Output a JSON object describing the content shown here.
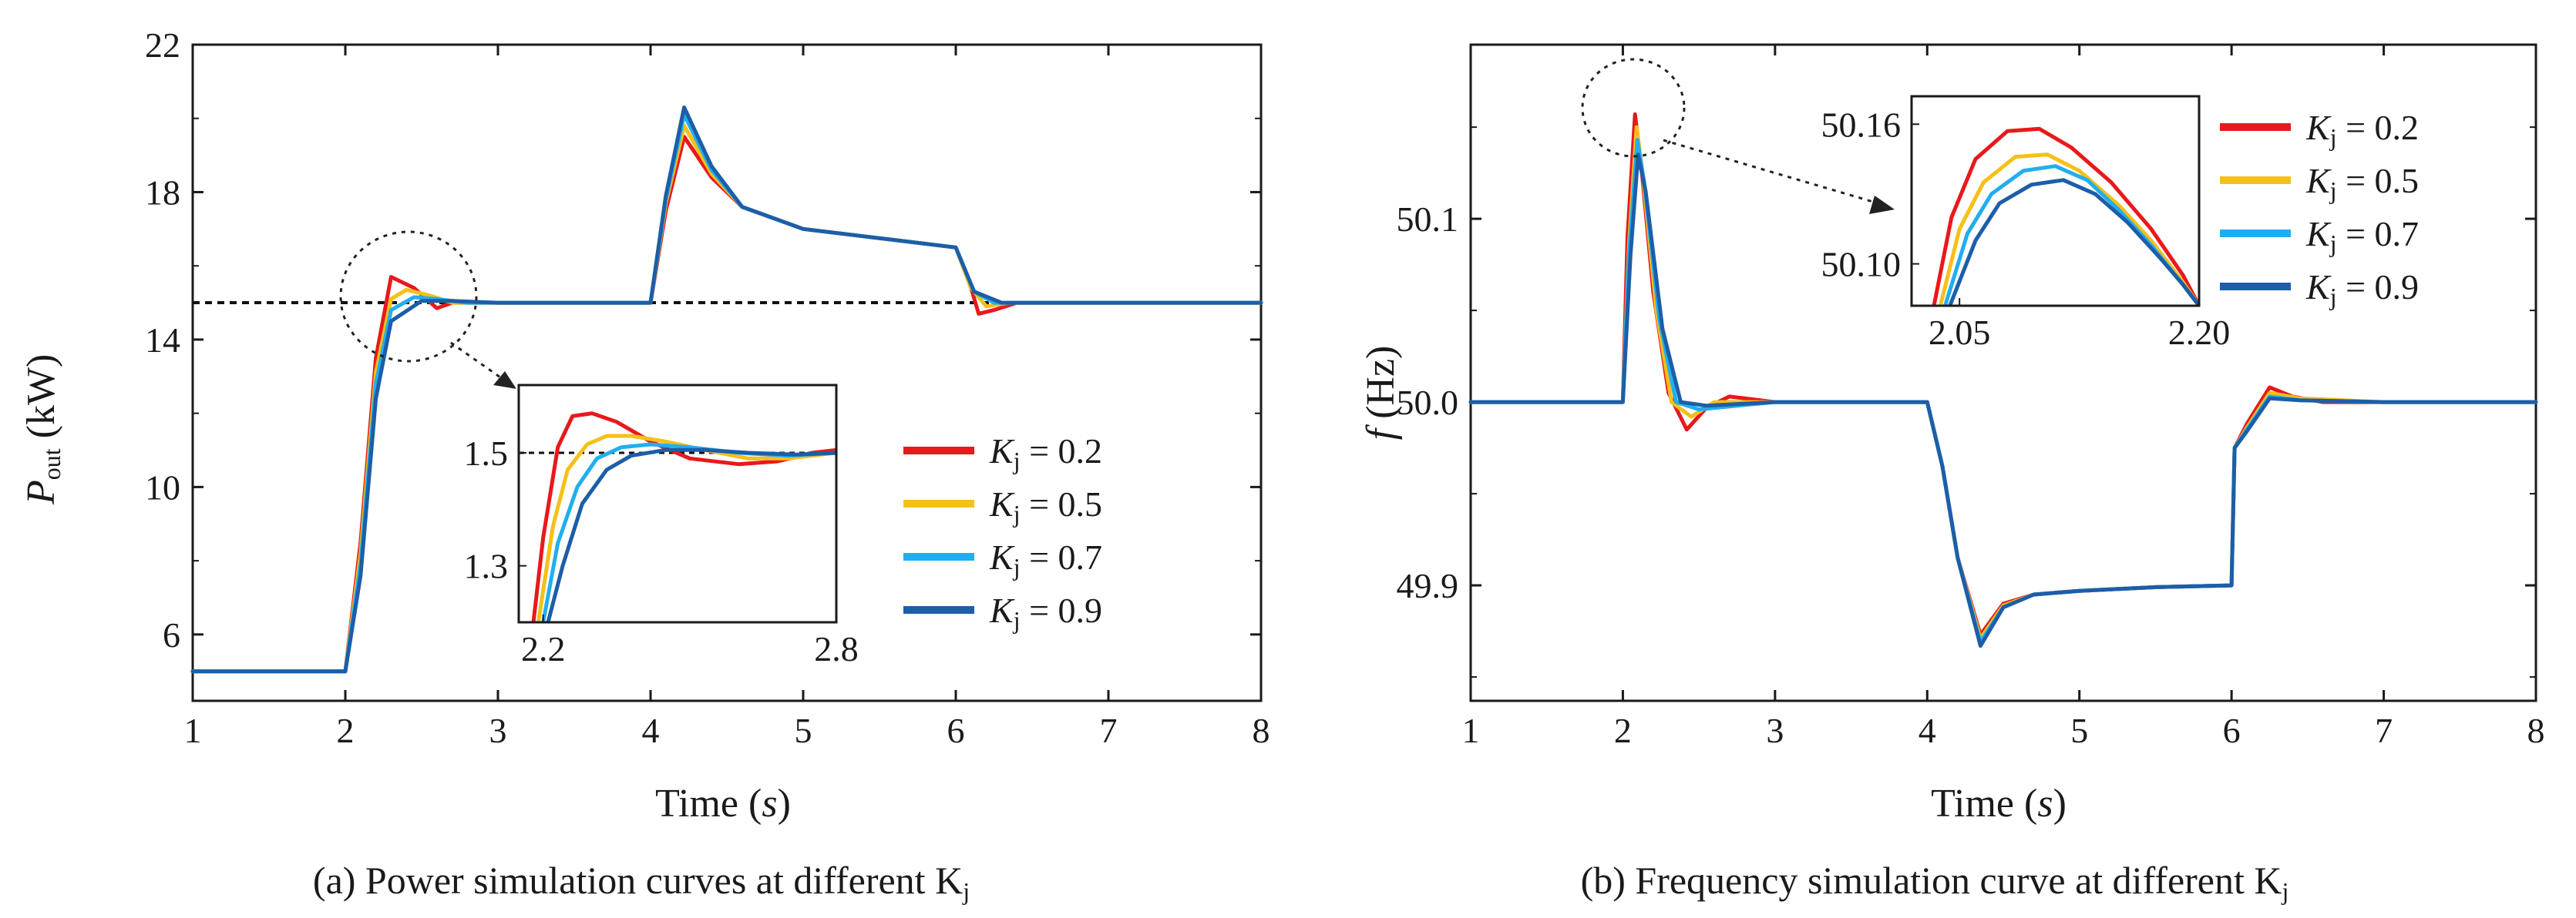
{
  "chart_data": [
    {
      "type": "line",
      "caption": "(a) Power simulation curves at different K",
      "caption_sub": "j",
      "xlabel": "Time (s)",
      "xlabel_var": "s",
      "ylabel": "P",
      "ylabel_sub": "out",
      "ylabel_unit": " (kW)",
      "xlim": [
        1,
        8
      ],
      "ylim": [
        4.2,
        22
      ],
      "xticks": [
        1,
        2,
        3,
        4,
        5,
        6,
        7,
        8
      ],
      "yticks": [
        6,
        10,
        14,
        18,
        22
      ],
      "reference_line": 15,
      "colors": [
        "#e8191b",
        "#f5c018",
        "#22aeee",
        "#1c5ea8"
      ],
      "series": [
        {
          "name": "Kj = 0.2",
          "x": [
            1,
            2,
            2.1,
            2.2,
            2.3,
            2.45,
            2.6,
            2.7,
            2.8,
            3,
            4,
            4.1,
            4.22,
            4.4,
            4.6,
            5,
            5.5,
            6,
            6.1,
            6.15,
            6.25,
            6.4,
            7,
            8
          ],
          "values": [
            5,
            5,
            8.5,
            13.5,
            15.7,
            15.4,
            14.85,
            15.0,
            15.0,
            15,
            15,
            17.5,
            19.5,
            18.4,
            17.6,
            17.0,
            16.75,
            16.5,
            15.4,
            14.7,
            14.8,
            15.0,
            15,
            15
          ]
        },
        {
          "name": "Kj = 0.5",
          "x": [
            1,
            2,
            2.1,
            2.2,
            2.3,
            2.4,
            2.55,
            2.7,
            3,
            4,
            4.1,
            4.22,
            4.4,
            4.6,
            5,
            5.5,
            6,
            6.1,
            6.2,
            6.35,
            7,
            8
          ],
          "values": [
            5,
            5,
            8.2,
            13.1,
            15.1,
            15.35,
            15.2,
            15.0,
            15,
            15,
            17.7,
            19.8,
            18.5,
            17.6,
            17.0,
            16.75,
            16.5,
            15.4,
            14.9,
            15.0,
            15,
            15
          ]
        },
        {
          "name": "Kj = 0.7",
          "x": [
            1,
            2,
            2.1,
            2.2,
            2.3,
            2.45,
            2.6,
            2.8,
            3,
            4,
            4.1,
            4.22,
            4.4,
            4.6,
            5,
            5.5,
            6,
            6.12,
            6.25,
            7,
            8
          ],
          "values": [
            5,
            5,
            7.9,
            12.8,
            14.8,
            15.15,
            15.1,
            15.0,
            15,
            15,
            17.8,
            20.1,
            18.6,
            17.6,
            17.0,
            16.75,
            16.5,
            15.3,
            15.0,
            15,
            15
          ]
        },
        {
          "name": "Kj = 0.9",
          "x": [
            1,
            2,
            2.1,
            2.2,
            2.3,
            2.5,
            2.7,
            3,
            4,
            4.1,
            4.22,
            4.4,
            4.6,
            5,
            5.5,
            6,
            6.12,
            6.3,
            7,
            8
          ],
          "values": [
            5,
            5,
            7.6,
            12.4,
            14.5,
            15.05,
            15.05,
            15,
            15,
            17.9,
            20.3,
            18.7,
            17.6,
            17.0,
            16.75,
            16.5,
            15.3,
            15.0,
            15,
            15
          ]
        }
      ],
      "inset": {
        "xlim": [
          2.15,
          2.8
        ],
        "ylim": [
          1.2,
          1.62
        ],
        "xticks": [
          {
            "v": 2.2,
            "label": "2.2"
          },
          {
            "v": 2.8,
            "label": "2.8"
          }
        ],
        "yticks": [
          {
            "v": 1.3,
            "label": "1.3"
          },
          {
            "v": 1.5,
            "label": "1.5"
          }
        ],
        "reference_line": 1.5,
        "series": [
          {
            "x": [
              2.18,
              2.2,
              2.23,
              2.26,
              2.3,
              2.35,
              2.42,
              2.5,
              2.6,
              2.68,
              2.75,
              2.8
            ],
            "values": [
              1.2,
              1.35,
              1.51,
              1.565,
              1.57,
              1.555,
              1.52,
              1.49,
              1.48,
              1.485,
              1.5,
              1.505
            ]
          },
          {
            "x": [
              2.19,
              2.22,
              2.25,
              2.29,
              2.33,
              2.38,
              2.45,
              2.53,
              2.62,
              2.7,
              2.8
            ],
            "values": [
              1.2,
              1.37,
              1.47,
              1.515,
              1.53,
              1.53,
              1.52,
              1.505,
              1.49,
              1.49,
              1.5
            ]
          },
          {
            "x": [
              2.2,
              2.23,
              2.27,
              2.31,
              2.36,
              2.42,
              2.5,
              2.6,
              2.7,
              2.8
            ],
            "values": [
              1.2,
              1.34,
              1.44,
              1.49,
              1.51,
              1.515,
              1.51,
              1.5,
              1.495,
              1.5
            ]
          },
          {
            "x": [
              2.21,
              2.24,
              2.28,
              2.33,
              2.38,
              2.45,
              2.53,
              2.62,
              2.72,
              2.8
            ],
            "values": [
              1.2,
              1.3,
              1.41,
              1.47,
              1.495,
              1.505,
              1.505,
              1.5,
              1.497,
              1.5
            ]
          }
        ]
      }
    },
    {
      "type": "line",
      "caption": "(b) Frequency simulation curve at different K",
      "caption_sub": "j",
      "xlabel": "Time (s)",
      "xlabel_var": "s",
      "ylabel": "f",
      "ylabel_unit": " (Hz)",
      "xlim": [
        1,
        8
      ],
      "ylim": [
        49.837,
        50.195
      ],
      "xticks": [
        1,
        2,
        3,
        4,
        5,
        6,
        7,
        8
      ],
      "yticks": [
        {
          "v": 49.9,
          "label": "49.9"
        },
        {
          "v": 50.0,
          "label": "50.0"
        },
        {
          "v": 50.1,
          "label": "50.1"
        }
      ],
      "colors": [
        "#e8191b",
        "#f5c018",
        "#22aeee",
        "#1c5ea8"
      ],
      "series": [
        {
          "name": "Kj = 0.2",
          "x": [
            1,
            2,
            2.03,
            2.08,
            2.12,
            2.2,
            2.3,
            2.42,
            2.55,
            2.7,
            3,
            4,
            4.1,
            4.2,
            4.35,
            4.5,
            4.7,
            5,
            5.5,
            6,
            6.02,
            6.1,
            6.25,
            6.4,
            6.6,
            7,
            8
          ],
          "values": [
            50,
            50,
            50.09,
            50.157,
            50.13,
            50.06,
            50.005,
            49.985,
            49.997,
            50.003,
            50,
            50,
            49.965,
            49.915,
            49.873,
            49.89,
            49.895,
            49.897,
            49.899,
            49.9,
            49.975,
            49.988,
            50.008,
            50.003,
            50,
            50,
            50
          ]
        },
        {
          "name": "Kj = 0.5",
          "x": [
            1,
            2,
            2.04,
            2.09,
            2.13,
            2.22,
            2.32,
            2.45,
            2.6,
            3,
            4,
            4.1,
            4.2,
            4.35,
            4.5,
            4.7,
            5,
            5.5,
            6,
            6.02,
            6.1,
            6.25,
            6.45,
            7,
            8
          ],
          "values": [
            50,
            50,
            50.085,
            50.15,
            50.125,
            50.05,
            50.0,
            49.992,
            50.0,
            50,
            50,
            49.965,
            49.915,
            49.871,
            49.889,
            49.895,
            49.897,
            49.899,
            49.9,
            49.975,
            49.986,
            50.005,
            50.002,
            50,
            50
          ]
        },
        {
          "name": "Kj = 0.7",
          "x": [
            1,
            2,
            2.04,
            2.095,
            2.14,
            2.24,
            2.35,
            2.5,
            3,
            4,
            4.1,
            4.2,
            4.35,
            4.5,
            4.7,
            5,
            5.5,
            6,
            6.02,
            6.1,
            6.25,
            6.45,
            7,
            8
          ],
          "values": [
            50,
            50,
            50.08,
            50.143,
            50.12,
            50.045,
            50.0,
            49.996,
            50,
            50,
            49.965,
            49.915,
            49.869,
            49.888,
            49.895,
            49.897,
            49.899,
            49.9,
            49.975,
            49.985,
            50.003,
            50.001,
            50,
            50
          ]
        },
        {
          "name": "Kj = 0.9",
          "x": [
            1,
            2,
            2.05,
            2.1,
            2.15,
            2.26,
            2.38,
            2.55,
            3,
            4,
            4.1,
            4.2,
            4.35,
            4.5,
            4.7,
            5,
            5.5,
            6,
            6.02,
            6.1,
            6.25,
            6.45,
            7,
            8
          ],
          "values": [
            50,
            50,
            50.08,
            50.135,
            50.115,
            50.04,
            50.0,
            49.998,
            50,
            50,
            49.965,
            49.915,
            49.867,
            49.888,
            49.895,
            49.897,
            49.899,
            49.9,
            49.975,
            49.984,
            50.002,
            50.001,
            50,
            50
          ]
        }
      ],
      "inset": {
        "xlim": [
          2.02,
          2.2
        ],
        "ylim": [
          50.082,
          50.172
        ],
        "xticks": [
          {
            "v": 2.05,
            "label": "2.05"
          },
          {
            "v": 2.2,
            "label": "2.20"
          }
        ],
        "yticks": [
          {
            "v": 50.1,
            "label": "50.10"
          },
          {
            "v": 50.16,
            "label": "50.16"
          }
        ],
        "series": [
          {
            "x": [
              2.034,
              2.045,
              2.06,
              2.08,
              2.1,
              2.12,
              2.145,
              2.17,
              2.19,
              2.2
            ],
            "values": [
              50.082,
              50.12,
              50.145,
              50.157,
              50.158,
              50.15,
              50.135,
              50.115,
              50.095,
              50.082
            ]
          },
          {
            "x": [
              2.038,
              2.05,
              2.065,
              2.085,
              2.105,
              2.125,
              2.15,
              2.17,
              2.19,
              2.2
            ],
            "values": [
              50.082,
              50.115,
              50.135,
              50.146,
              50.147,
              50.14,
              50.125,
              50.11,
              50.092,
              50.082
            ]
          },
          {
            "x": [
              2.041,
              2.055,
              2.07,
              2.09,
              2.11,
              2.13,
              2.15,
              2.17,
              2.19,
              2.2
            ],
            "values": [
              50.082,
              50.113,
              50.13,
              50.14,
              50.142,
              50.136,
              50.123,
              50.108,
              50.091,
              50.082
            ]
          },
          {
            "x": [
              2.044,
              2.06,
              2.075,
              2.095,
              2.115,
              2.135,
              2.155,
              2.175,
              2.19,
              2.2
            ],
            "values": [
              50.082,
              50.11,
              50.126,
              50.134,
              50.136,
              50.13,
              50.118,
              50.103,
              50.091,
              50.082
            ]
          }
        ]
      }
    }
  ],
  "legend": {
    "symbol": "K",
    "subscript": "j",
    "items": [
      " = 0.2",
      " = 0.5",
      " = 0.7",
      " = 0.9"
    ]
  }
}
